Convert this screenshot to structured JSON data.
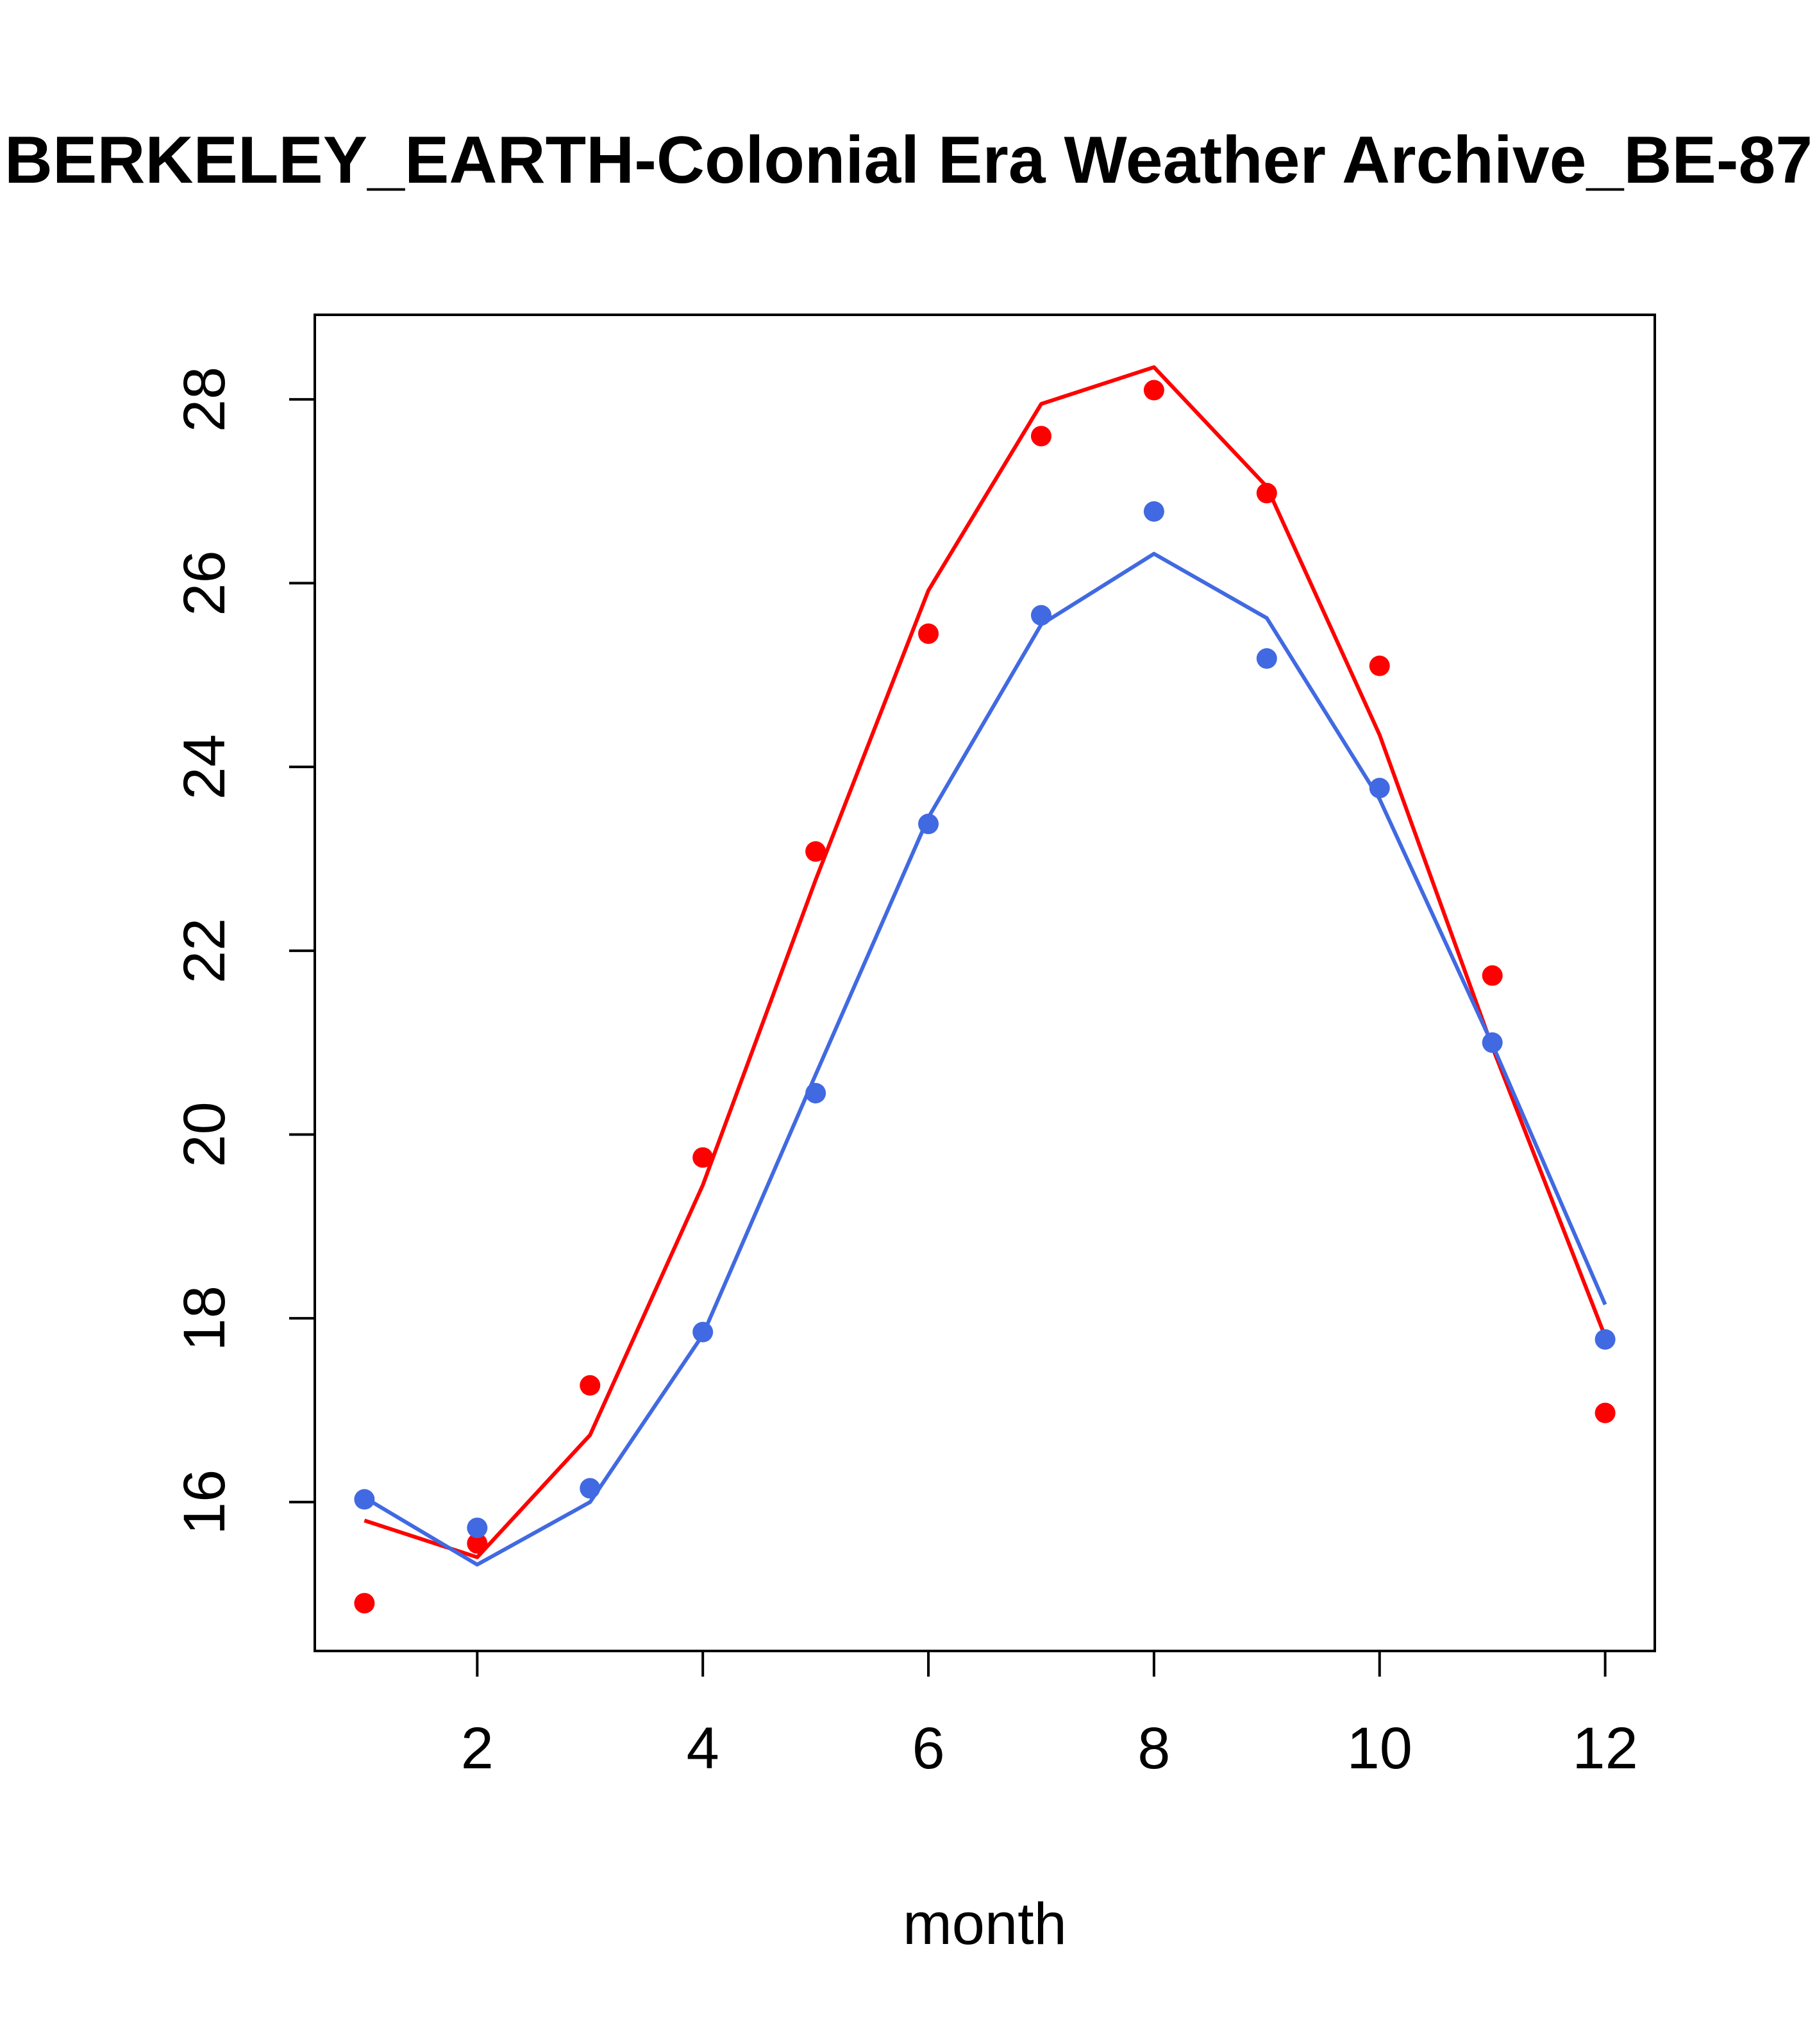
{
  "chart_data": {
    "type": "line",
    "title": "BERKELEY_EARTH-Colonial Era Weather Archive_BE-87",
    "xlabel": "month",
    "ylabel": "",
    "xlim": [
      0.56,
      12.44
    ],
    "ylim": [
      14.38,
      28.92
    ],
    "xticks": [
      2,
      4,
      6,
      8,
      10,
      12
    ],
    "yticks": [
      16,
      18,
      20,
      22,
      24,
      26,
      28
    ],
    "grid": false,
    "legend": "none",
    "x": [
      1,
      2,
      3,
      4,
      5,
      6,
      7,
      8,
      9,
      10,
      11,
      12
    ],
    "series": [
      {
        "color": "#FF0000",
        "points": [
          14.9,
          15.55,
          17.27,
          19.75,
          23.08,
          25.45,
          27.6,
          28.1,
          26.98,
          25.1,
          21.73,
          16.97
        ],
        "line": [
          15.8,
          15.4,
          16.73,
          19.45,
          22.77,
          25.92,
          27.95,
          28.35,
          27.05,
          24.35,
          20.95,
          17.8
        ]
      },
      {
        "color": "#4169E1",
        "points": [
          16.03,
          15.72,
          16.15,
          17.85,
          20.45,
          23.38,
          25.65,
          26.78,
          25.18,
          23.77,
          21.0,
          17.77
        ],
        "line": [
          16.05,
          15.32,
          16.0,
          17.82,
          20.65,
          23.45,
          25.55,
          26.32,
          25.62,
          23.65,
          20.98,
          18.15
        ]
      }
    ]
  }
}
